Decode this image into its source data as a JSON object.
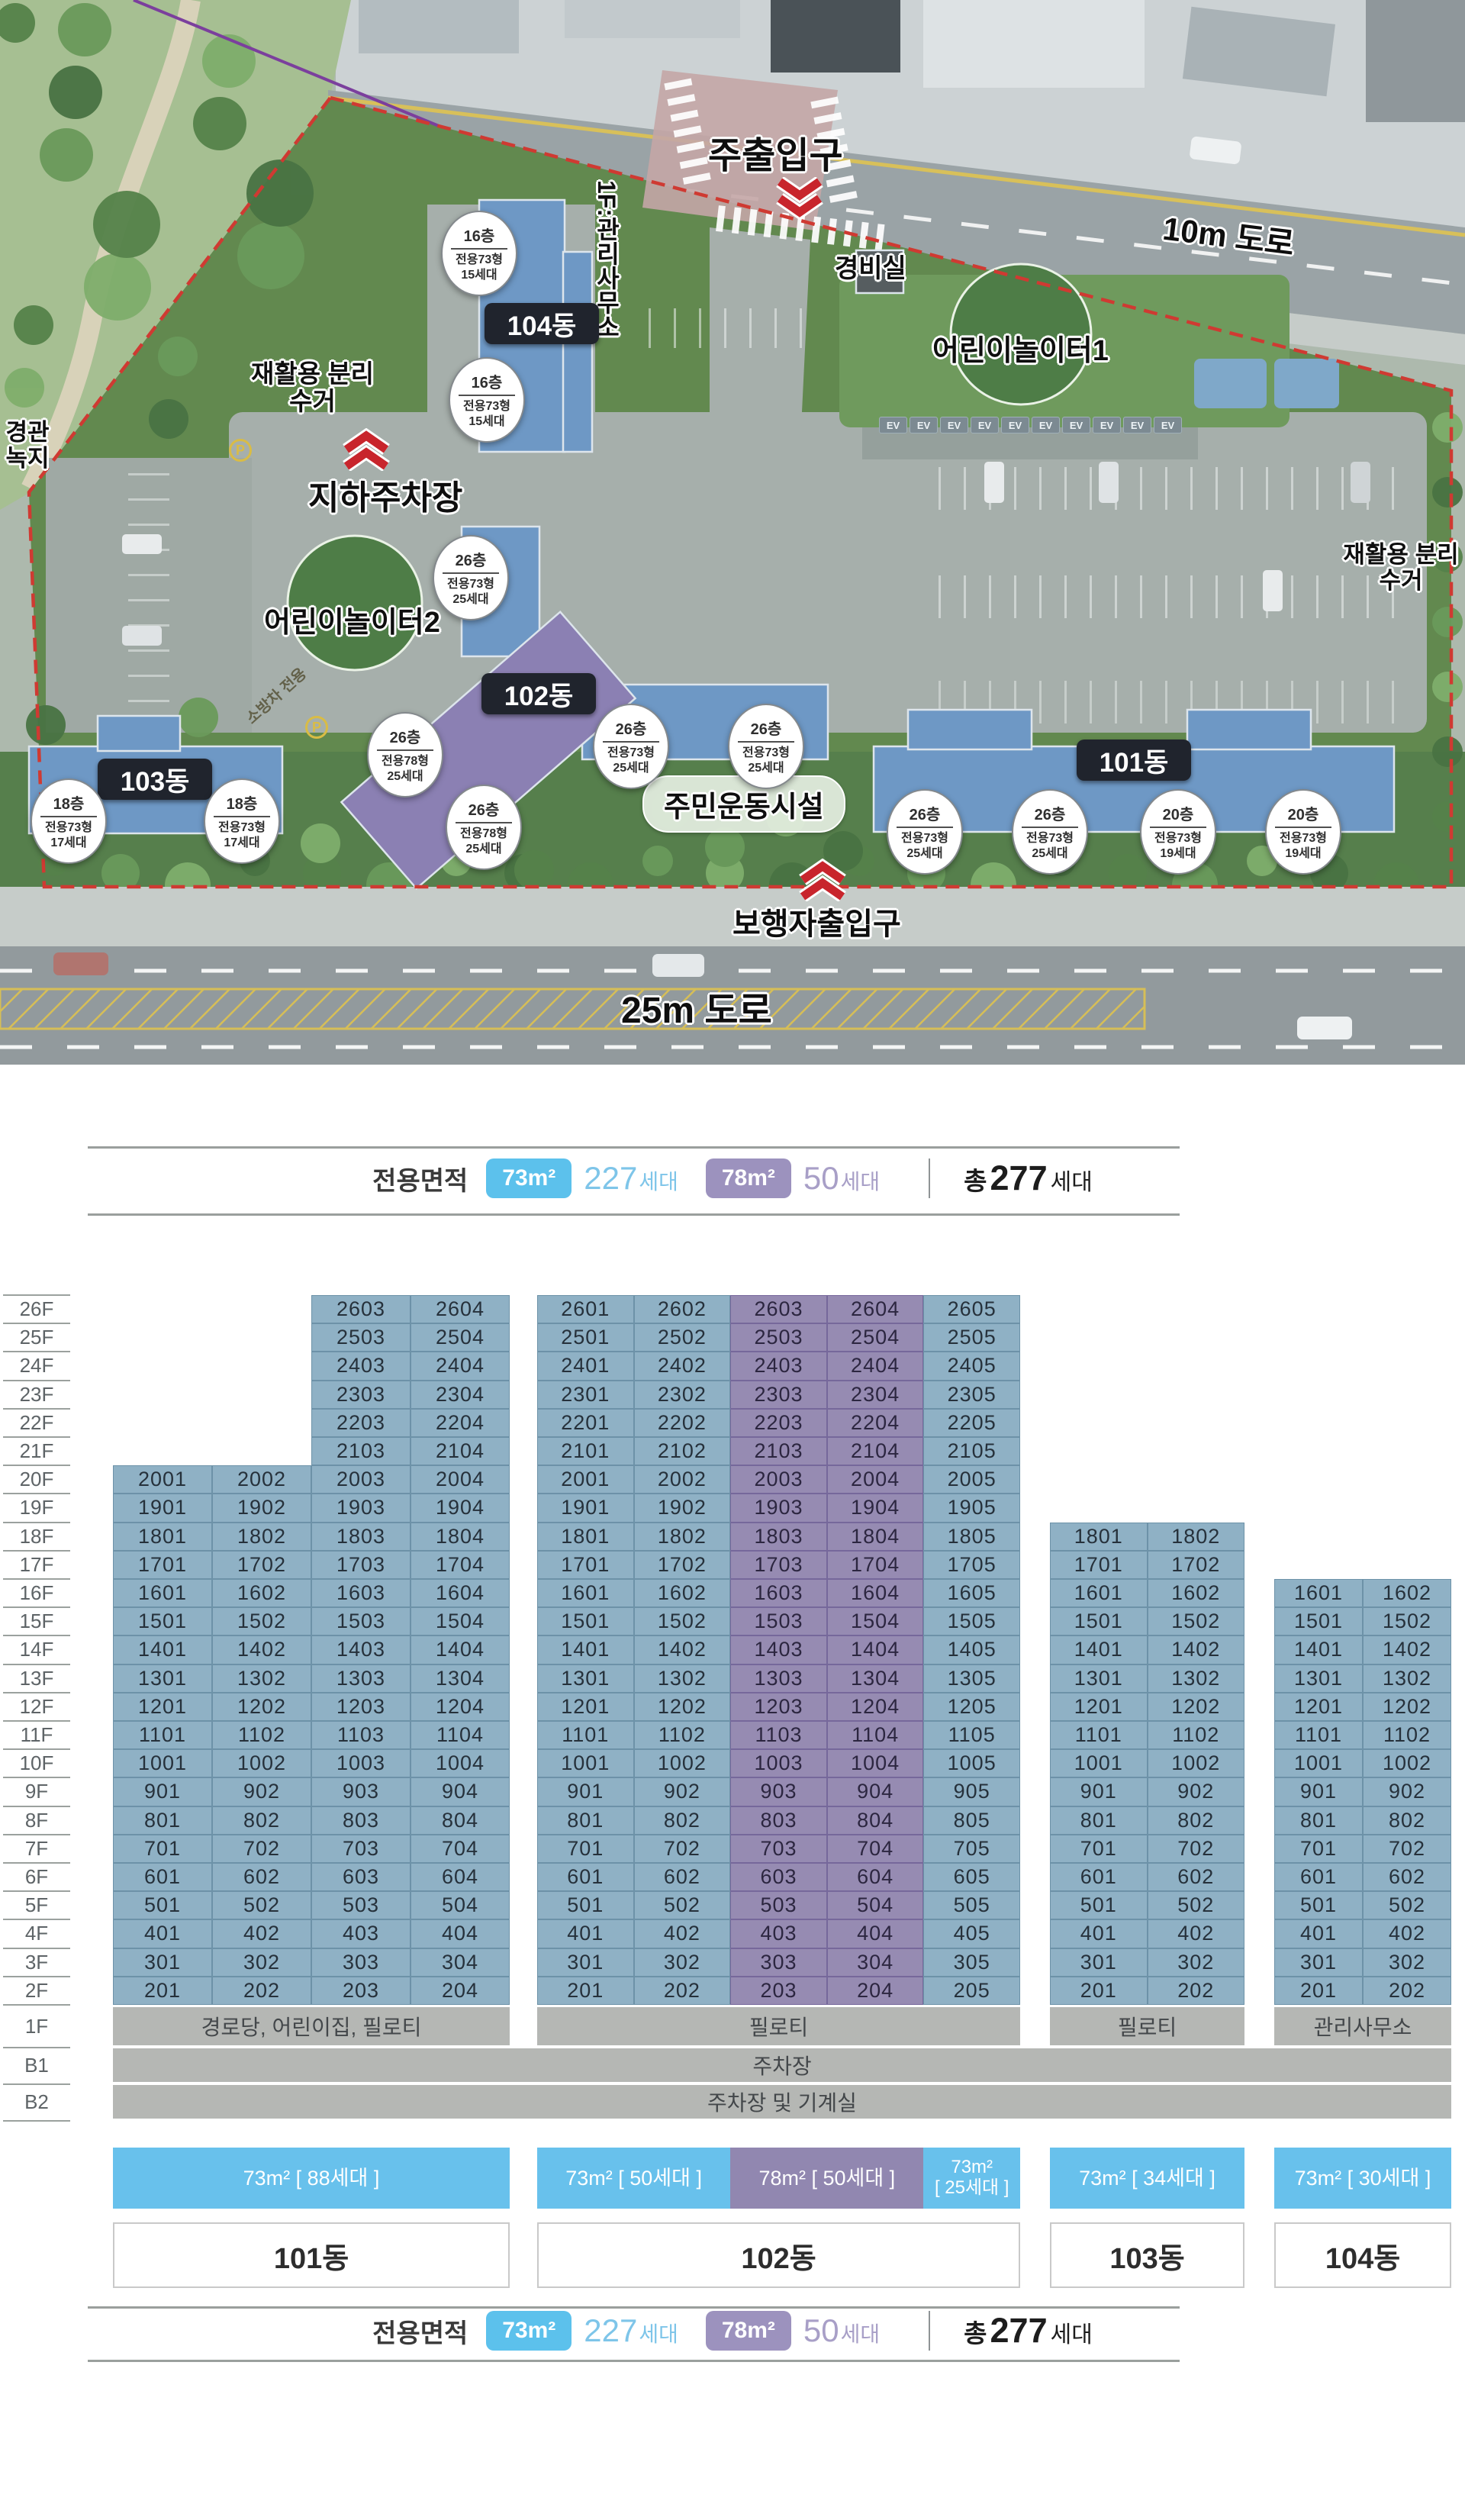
{
  "site_plan": {
    "road_top": "10m 도로",
    "road_bottom": "25m 도로",
    "main_entrance": "주출입구",
    "pedestrian_entrance": "보행자출입구",
    "underground_parking": "지하주차장",
    "security_office": "경비실",
    "playground1": "어린이놀이터1",
    "playground2": "어린이놀이터2",
    "recycling": "재활용 분리수거",
    "management_office": "1F:관리사무소",
    "sports_facility": "주민운동시설",
    "landscape_green": "경관녹지",
    "fire_lane": "소방차 전용",
    "ev_marker": "EV",
    "parking_marker": "P",
    "buildings": [
      {
        "name": "104동",
        "circles": [
          {
            "floor": "16층",
            "type": "전용73형",
            "units": "15세대"
          },
          {
            "floor": "16층",
            "type": "전용73형",
            "units": "15세대"
          }
        ]
      },
      {
        "name": "102동",
        "circles": [
          {
            "floor": "26층",
            "type": "전용73형",
            "units": "25세대"
          },
          {
            "floor": "26층",
            "type": "전용78형",
            "units": "25세대"
          },
          {
            "floor": "26층",
            "type": "전용78형",
            "units": "25세대"
          },
          {
            "floor": "26층",
            "type": "전용73형",
            "units": "25세대"
          },
          {
            "floor": "26층",
            "type": "전용73형",
            "units": "25세대"
          }
        ]
      },
      {
        "name": "103동",
        "circles": [
          {
            "floor": "18층",
            "type": "전용73형",
            "units": "17세대"
          },
          {
            "floor": "18층",
            "type": "전용73형",
            "units": "17세대"
          }
        ]
      },
      {
        "name": "101동",
        "circles": [
          {
            "floor": "26층",
            "type": "전용73형",
            "units": "25세대"
          },
          {
            "floor": "26층",
            "type": "전용73형",
            "units": "25세대"
          },
          {
            "floor": "20층",
            "type": "전용73형",
            "units": "19세대"
          },
          {
            "floor": "20층",
            "type": "전용73형",
            "units": "19세대"
          }
        ]
      }
    ]
  },
  "legend": {
    "title": "전용면적",
    "items": [
      {
        "chip": "73m²",
        "count": "227",
        "suffix": "세대"
      },
      {
        "chip": "78m²",
        "count": "50",
        "suffix": "세대"
      }
    ],
    "total_label": "총",
    "total_count": "277",
    "total_suffix": "세대"
  },
  "chart_data": {
    "type": "table",
    "floors": [
      "26F",
      "25F",
      "24F",
      "23F",
      "22F",
      "21F",
      "20F",
      "19F",
      "18F",
      "17F",
      "16F",
      "15F",
      "14F",
      "13F",
      "12F",
      "11F",
      "10F",
      "9F",
      "8F",
      "7F",
      "6F",
      "5F",
      "4F",
      "3F",
      "2F",
      "1F",
      "B1",
      "B2"
    ],
    "unit_number_rule": "unit number = floor*100 + line (e.g. 20F line1 = 2001)",
    "lowest_residential_floor": 2,
    "blocks": [
      {
        "name": "101동",
        "first_floor": "경로당, 어린이집, 필로티",
        "columns": [
          {
            "line": 1,
            "top_floor": 20,
            "area": "73"
          },
          {
            "line": 2,
            "top_floor": 20,
            "area": "73"
          },
          {
            "line": 3,
            "top_floor": 26,
            "area": "73"
          },
          {
            "line": 4,
            "top_floor": 26,
            "area": "73"
          }
        ],
        "bar_segments": [
          {
            "text": "73m² [ 88세대 ]",
            "area": "73",
            "weight": 1
          }
        ]
      },
      {
        "name": "102동",
        "first_floor": "필로티",
        "columns": [
          {
            "line": 1,
            "top_floor": 26,
            "area": "73"
          },
          {
            "line": 2,
            "top_floor": 26,
            "area": "73"
          },
          {
            "line": 3,
            "top_floor": 26,
            "area": "78"
          },
          {
            "line": 4,
            "top_floor": 26,
            "area": "78"
          },
          {
            "line": 5,
            "top_floor": 26,
            "area": "73"
          }
        ],
        "bar_segments": [
          {
            "text": "73m² [ 50세대 ]",
            "area": "73",
            "weight": 2
          },
          {
            "text": "78m² [ 50세대 ]",
            "area": "78",
            "weight": 2
          },
          {
            "text": "73m²\n[ 25세대 ]",
            "area": "73",
            "weight": 1
          }
        ]
      },
      {
        "name": "103동",
        "first_floor": "필로티",
        "columns": [
          {
            "line": 1,
            "top_floor": 18,
            "area": "73"
          },
          {
            "line": 2,
            "top_floor": 18,
            "area": "73"
          }
        ],
        "bar_segments": [
          {
            "text": "73m² [ 34세대 ]",
            "area": "73",
            "weight": 1
          }
        ]
      },
      {
        "name": "104동",
        "first_floor": "관리사무소",
        "columns": [
          {
            "line": 1,
            "top_floor": 16,
            "area": "73"
          },
          {
            "line": 2,
            "top_floor": 16,
            "area": "73"
          }
        ],
        "bar_segments": [
          {
            "text": "73m² [ 30세대 ]",
            "area": "73",
            "weight": 1
          }
        ]
      }
    ],
    "basements": [
      {
        "floor": "B1",
        "label": "주차장"
      },
      {
        "floor": "B2",
        "label": "주차장 및 기계실"
      }
    ]
  },
  "colors": {
    "unit_73_cell": "#8fb1c5",
    "unit_78_cell": "#968bb2",
    "bar_73": "#68c1ec",
    "bar_78": "#9187b0",
    "legend_chip_73": "#5cc1ec",
    "legend_chip_78": "#9c92be",
    "count_73_text": "#7ec5e9",
    "count_78_text": "#a89fc7",
    "floor_band_gray": "#b5b7b4",
    "building_blue": "#6e98c5",
    "building_purple": "#8b80b3",
    "boundary_red": "#cf3a32"
  }
}
